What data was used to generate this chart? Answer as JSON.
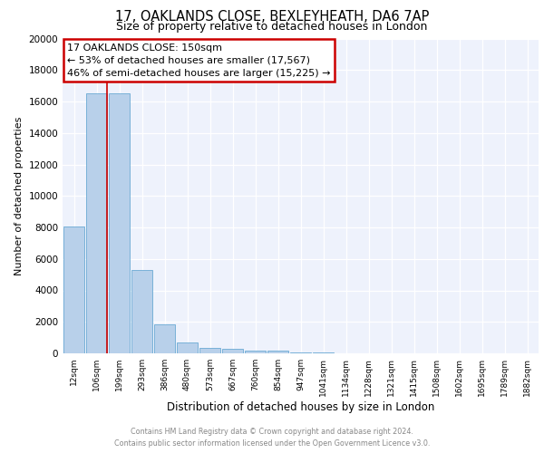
{
  "title": "17, OAKLANDS CLOSE, BEXLEYHEATH, DA6 7AP",
  "subtitle": "Size of property relative to detached houses in London",
  "xlabel": "Distribution of detached houses by size in London",
  "ylabel": "Number of detached properties",
  "bin_labels": [
    "12sqm",
    "106sqm",
    "199sqm",
    "293sqm",
    "386sqm",
    "480sqm",
    "573sqm",
    "667sqm",
    "760sqm",
    "854sqm",
    "947sqm",
    "1041sqm",
    "1134sqm",
    "1228sqm",
    "1321sqm",
    "1415sqm",
    "1508sqm",
    "1602sqm",
    "1695sqm",
    "1789sqm",
    "1882sqm"
  ],
  "bar_values": [
    8050,
    16500,
    16500,
    5300,
    1850,
    700,
    360,
    260,
    200,
    150,
    55,
    35,
    20,
    15,
    10,
    8,
    5,
    3,
    2,
    1,
    0
  ],
  "bar_color": "#b8d0ea",
  "bar_edge_color": "#6aaad4",
  "red_line_x": 1.44,
  "annotation_text": "17 OAKLANDS CLOSE: 150sqm\n← 53% of detached houses are smaller (17,567)\n46% of semi-detached houses are larger (15,225) →",
  "ylim": [
    0,
    20000
  ],
  "yticks": [
    0,
    2000,
    4000,
    6000,
    8000,
    10000,
    12000,
    14000,
    16000,
    18000,
    20000
  ],
  "footer_line1": "Contains HM Land Registry data © Crown copyright and database right 2024.",
  "footer_line2": "Contains public sector information licensed under the Open Government Licence v3.0.",
  "bg_color": "#eef2fc",
  "grid_color": "#ffffff",
  "title_fontsize": 10.5,
  "subtitle_fontsize": 9,
  "annotation_box_color": "#cc0000",
  "annotation_fontsize": 8
}
